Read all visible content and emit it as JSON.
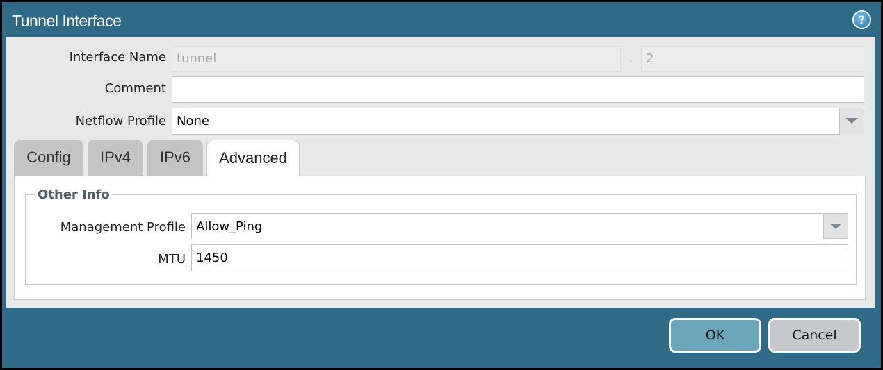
{
  "dialog": {
    "title": "Tunnel Interface",
    "help_icon": "help-icon"
  },
  "fields": {
    "interface_name": {
      "label": "Interface Name",
      "value": "tunnel",
      "separator": ".",
      "suffix": "2"
    },
    "comment": {
      "label": "Comment",
      "value": ""
    },
    "netflow_profile": {
      "label": "Netflow Profile",
      "value": "None"
    }
  },
  "tabs": [
    {
      "label": "Config"
    },
    {
      "label": "IPv4"
    },
    {
      "label": "IPv6"
    },
    {
      "label": "Advanced",
      "active": true
    }
  ],
  "advanced": {
    "group_title": "Other Info",
    "management_profile": {
      "label": "Management Profile",
      "value": "Allow_Ping"
    },
    "mtu": {
      "label": "MTU",
      "value": "1450"
    }
  },
  "buttons": {
    "ok": "OK",
    "cancel": "Cancel"
  },
  "colors": {
    "titlebar": "#306a89",
    "ok_button": "#6aa5ba",
    "cancel_button": "#c6c8cc"
  }
}
